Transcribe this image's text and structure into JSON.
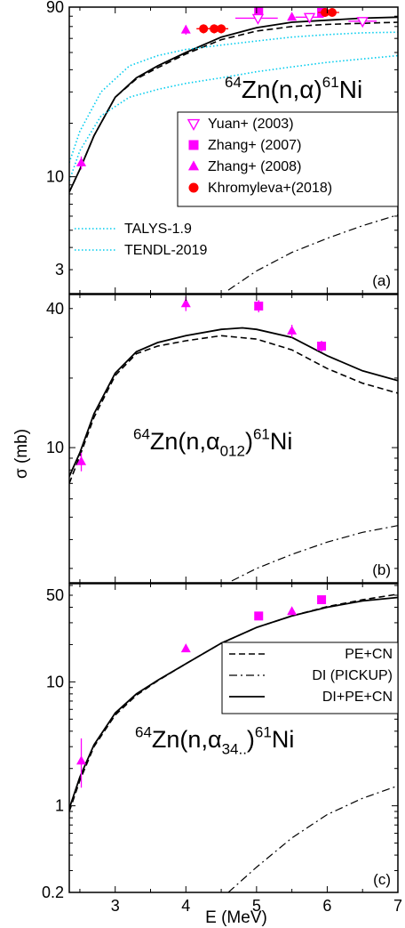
{
  "xlabel": "E (MeV)",
  "ylabel": "σ (mb)",
  "xlim": [
    2.35,
    7
  ],
  "xticks": [
    3,
    4,
    5,
    6,
    7
  ],
  "colors": {
    "magenta": "#ff00ff",
    "red": "#ff0000",
    "cyan": "#00ccee",
    "black": "#000000"
  },
  "chart_data": [
    {
      "type": "scatter",
      "panel_label": "(a)",
      "reaction": {
        "pre": "64",
        "main": "Zn(n,α)",
        "sub": "",
        "post_sup": "61",
        "post": "Ni"
      },
      "yscale": "log",
      "ylim": [
        2.2,
        90
      ],
      "yticks": [
        3,
        10,
        90
      ],
      "legend_top": [
        {
          "name": "Yuan+ (2003)",
          "marker": "triangle-down-open",
          "color": "#ff00ff"
        },
        {
          "name": "Zhang+ (2007)",
          "marker": "square",
          "color": "#ff00ff"
        },
        {
          "name": "Zhang+ (2008)",
          "marker": "triangle-up",
          "color": "#ff00ff"
        },
        {
          "name": "Khromyleva+(2018)",
          "marker": "circle",
          "color": "#ff0000"
        }
      ],
      "legend_bottom": [
        {
          "name": "TALYS-1.9",
          "line": "dotted",
          "color": "#00ccee"
        },
        {
          "name": "TENDL-2019",
          "line": "dotted",
          "color": "#00ccee"
        }
      ],
      "series": [
        {
          "key": "di_pe_cn",
          "style": "solid",
          "color": "#000000",
          "x": [
            2.35,
            2.5,
            2.7,
            3.0,
            3.3,
            3.6,
            4.0,
            4.5,
            5.0,
            5.5,
            6.0,
            6.5,
            7.0
          ],
          "y": [
            8.2,
            11,
            17,
            28,
            36,
            42,
            50,
            61,
            69,
            74,
            76,
            78,
            79
          ]
        },
        {
          "key": "pe_cn",
          "style": "dashed",
          "color": "#000000",
          "x": [
            2.35,
            2.5,
            2.7,
            3.0,
            3.3,
            3.6,
            4.0,
            4.5,
            5.0,
            5.5,
            6.0,
            6.5,
            7.0
          ],
          "y": [
            8.2,
            11,
            17,
            28,
            35.5,
            41,
            49,
            59,
            66,
            70,
            72,
            73,
            74
          ]
        },
        {
          "key": "di_pickup",
          "style": "dashdot",
          "color": "#000000",
          "x": [
            4.6,
            5.0,
            5.5,
            6.0,
            6.5,
            7.0
          ],
          "y": [
            2.3,
            2.95,
            3.75,
            4.5,
            5.3,
            6.1
          ]
        },
        {
          "key": "talys",
          "style": "dotted",
          "color": "#00ccee",
          "x": [
            2.35,
            2.5,
            2.8,
            3.2,
            3.6,
            4.0,
            4.5,
            5.0,
            5.5,
            6.0,
            6.5,
            7.0
          ],
          "y": [
            9.5,
            14,
            22,
            28,
            31,
            33.5,
            36,
            39,
            41.5,
            44,
            46,
            48
          ]
        },
        {
          "key": "tendl",
          "style": "dotted",
          "color": "#00ccee",
          "x": [
            2.35,
            2.5,
            2.8,
            3.2,
            3.6,
            4.0,
            4.5,
            5.0,
            5.5,
            6.0,
            6.5,
            7.0
          ],
          "y": [
            12,
            18,
            30,
            42,
            48,
            52,
            55,
            58,
            61,
            63,
            64.5,
            65
          ]
        }
      ],
      "points": [
        {
          "set": "Yuan+ (2003)",
          "marker": "triangle-down-open",
          "color": "#ff00ff",
          "x": 5.02,
          "y": 78,
          "yerr": [
            73,
            83
          ],
          "xerr": [
            4.7,
            5.3
          ]
        },
        {
          "set": "Yuan+ (2003)",
          "marker": "triangle-down-open",
          "color": "#ff00ff",
          "x": 5.75,
          "y": 79,
          "yerr": [
            75,
            83
          ],
          "xerr": [
            5.55,
            5.95
          ]
        },
        {
          "set": "Yuan+ (2003)",
          "marker": "triangle-down-open",
          "color": "#ff00ff",
          "x": 6.5,
          "y": 75,
          "yerr": [
            71,
            79
          ],
          "xerr": [
            6.3,
            6.7
          ]
        },
        {
          "set": "Zhang+ (2007)",
          "marker": "square",
          "color": "#ff00ff",
          "x": 5.03,
          "y": 87,
          "yerr": [
            84,
            91
          ],
          "xerr": null
        },
        {
          "set": "Zhang+ (2007)",
          "marker": "square",
          "color": "#ff00ff",
          "x": 5.92,
          "y": 84,
          "yerr": [
            81,
            87
          ],
          "xerr": null
        },
        {
          "set": "Zhang+ (2008)",
          "marker": "triangle-up",
          "color": "#ff00ff",
          "x": 2.52,
          "y": 12,
          "yerr": [
            11,
            13
          ],
          "xerr": null
        },
        {
          "set": "Zhang+ (2008)",
          "marker": "triangle-up",
          "color": "#ff00ff",
          "x": 4.0,
          "y": 67,
          "yerr": [
            63,
            71
          ],
          "xerr": null
        },
        {
          "set": "Zhang+ (2008)",
          "marker": "triangle-up",
          "color": "#ff00ff",
          "x": 5.5,
          "y": 79,
          "yerr": [
            76,
            82
          ],
          "xerr": null
        },
        {
          "set": "Khromyleva+(2018)",
          "marker": "circle",
          "color": "#ff0000",
          "x": 4.25,
          "y": 68,
          "yerr": [
            64,
            72
          ],
          "xerr": [
            4.15,
            4.35
          ]
        },
        {
          "set": "Khromyleva+(2018)",
          "marker": "circle",
          "color": "#ff0000",
          "x": 4.4,
          "y": 68,
          "yerr": [
            64,
            72
          ],
          "xerr": [
            4.3,
            4.5
          ]
        },
        {
          "set": "Khromyleva+(2018)",
          "marker": "circle",
          "color": "#ff0000",
          "x": 4.5,
          "y": 68,
          "yerr": [
            64,
            72
          ],
          "xerr": [
            4.4,
            4.6
          ]
        },
        {
          "set": "Khromyleva+(2018)",
          "marker": "circle",
          "color": "#ff0000",
          "x": 5.97,
          "y": 84,
          "yerr": [
            80,
            88
          ],
          "xerr": [
            5.87,
            6.07
          ]
        },
        {
          "set": "Khromyleva+(2018)",
          "marker": "circle",
          "color": "#ff0000",
          "x": 6.07,
          "y": 84,
          "yerr": [
            80,
            88
          ],
          "xerr": [
            5.97,
            6.17
          ]
        }
      ]
    },
    {
      "type": "scatter",
      "panel_label": "(b)",
      "reaction": {
        "pre": "64",
        "main": "Zn(n,α",
        "sub": "012",
        "post_sup": "61",
        "post": "Ni"
      },
      "yscale": "log",
      "ylim": [
        2.6,
        46
      ],
      "yticks": [
        10,
        40
      ],
      "series": [
        {
          "key": "di_pe_cn",
          "style": "solid",
          "color": "#000000",
          "x": [
            2.35,
            2.5,
            2.7,
            3.0,
            3.3,
            3.6,
            4.0,
            4.5,
            4.8,
            5.0,
            5.5,
            6.0,
            6.5,
            7.0
          ],
          "y": [
            7.5,
            9.5,
            14,
            21,
            26,
            28.5,
            30.5,
            32.5,
            33,
            32.5,
            30,
            25,
            21.5,
            19.5
          ]
        },
        {
          "key": "pe_cn",
          "style": "dashed",
          "color": "#000000",
          "x": [
            2.35,
            2.5,
            2.7,
            3.0,
            3.3,
            3.6,
            4.0,
            4.5,
            5.0,
            5.5,
            6.0,
            6.5,
            7.0
          ],
          "y": [
            7.0,
            9.2,
            13.5,
            20.5,
            25.5,
            27.5,
            29,
            30.5,
            29.5,
            26.5,
            22,
            19,
            17.2
          ]
        },
        {
          "key": "di_pickup",
          "style": "dashdot",
          "color": "#000000",
          "x": [
            4.65,
            5.0,
            5.5,
            6.0,
            6.5,
            7.0
          ],
          "y": [
            2.65,
            3.0,
            3.45,
            3.9,
            4.3,
            4.6
          ]
        }
      ],
      "points": [
        {
          "set": "Zhang+ (2008)",
          "marker": "triangle-up",
          "color": "#ff00ff",
          "x": 2.52,
          "y": 8.7,
          "yerr": [
            7.9,
            9.5
          ],
          "xerr": null
        },
        {
          "set": "Zhang+ (2008)",
          "marker": "triangle-up",
          "color": "#ff00ff",
          "x": 4.0,
          "y": 42,
          "yerr": [
            39,
            45
          ],
          "xerr": null
        },
        {
          "set": "Zhang+ (2007)",
          "marker": "square",
          "color": "#ff00ff",
          "x": 5.03,
          "y": 41,
          "yerr": [
            38.5,
            43.5
          ],
          "xerr": null
        },
        {
          "set": "Zhang+ (2008)",
          "marker": "triangle-up",
          "color": "#ff00ff",
          "x": 5.5,
          "y": 32,
          "yerr": [
            30,
            34
          ],
          "xerr": null
        },
        {
          "set": "Zhang+ (2007)",
          "marker": "square",
          "color": "#ff00ff",
          "x": 5.92,
          "y": 27.5,
          "yerr": [
            26,
            29
          ],
          "xerr": null
        }
      ]
    },
    {
      "type": "scatter",
      "panel_label": "(c)",
      "reaction": {
        "pre": "64",
        "main": "Zn(n,α",
        "sub": "34..",
        "post_sup": "61",
        "post": "Ni"
      },
      "yscale": "log",
      "ylim": [
        0.2,
        62
      ],
      "yticks": [
        0.2,
        1,
        10,
        50
      ],
      "legend_right": [
        {
          "name": "PE+CN",
          "line": "dashed",
          "color": "#000000"
        },
        {
          "name": "DI (PICKUP)",
          "line": "dashdot",
          "color": "#000000"
        },
        {
          "name": "DI+PE+CN",
          "line": "solid",
          "color": "#000000"
        }
      ],
      "series": [
        {
          "key": "di_pe_cn",
          "style": "solid",
          "color": "#000000",
          "x": [
            2.35,
            2.5,
            2.7,
            3.0,
            3.3,
            3.6,
            4.0,
            4.5,
            5.0,
            5.5,
            6.0,
            6.5,
            7.0
          ],
          "y": [
            0.95,
            1.7,
            3.1,
            5.6,
            8.0,
            10.3,
            14,
            20.5,
            27.5,
            34,
            40,
            45,
            48
          ]
        },
        {
          "key": "pe_cn",
          "style": "dashed",
          "color": "#000000",
          "x": [
            2.35,
            2.5,
            2.7,
            3.0,
            3.3,
            3.6,
            4.0,
            4.5,
            5.0,
            5.5,
            6.0,
            6.5,
            7.0
          ],
          "y": [
            0.9,
            1.6,
            3.0,
            5.4,
            7.8,
            10.2,
            14,
            20.5,
            27.5,
            34,
            40.5,
            46,
            51
          ]
        },
        {
          "key": "di_pickup",
          "style": "dashdot",
          "color": "#000000",
          "x": [
            4.6,
            5.0,
            5.5,
            6.0,
            6.5,
            7.0
          ],
          "y": [
            0.2,
            0.32,
            0.55,
            0.85,
            1.15,
            1.45
          ]
        }
      ],
      "points": [
        {
          "set": "Zhang+ (2008)",
          "marker": "triangle-up",
          "color": "#ff00ff",
          "x": 2.52,
          "y": 2.3,
          "yerr": [
            1.4,
            3.5
          ],
          "xerr": null
        },
        {
          "set": "Zhang+ (2008)",
          "marker": "triangle-up",
          "color": "#ff00ff",
          "x": 4.0,
          "y": 18.5,
          "yerr": [
            17.5,
            19.5
          ],
          "xerr": null
        },
        {
          "set": "Zhang+ (2007)",
          "marker": "square",
          "color": "#ff00ff",
          "x": 5.03,
          "y": 34,
          "yerr": [
            32,
            36
          ],
          "xerr": null
        },
        {
          "set": "Zhang+ (2008)",
          "marker": "triangle-up",
          "color": "#ff00ff",
          "x": 5.5,
          "y": 37,
          "yerr": [
            35,
            39
          ],
          "xerr": null
        },
        {
          "set": "Zhang+ (2007)",
          "marker": "square",
          "color": "#ff00ff",
          "x": 5.92,
          "y": 46,
          "yerr": [
            44,
            48
          ],
          "xerr": null
        }
      ]
    }
  ]
}
